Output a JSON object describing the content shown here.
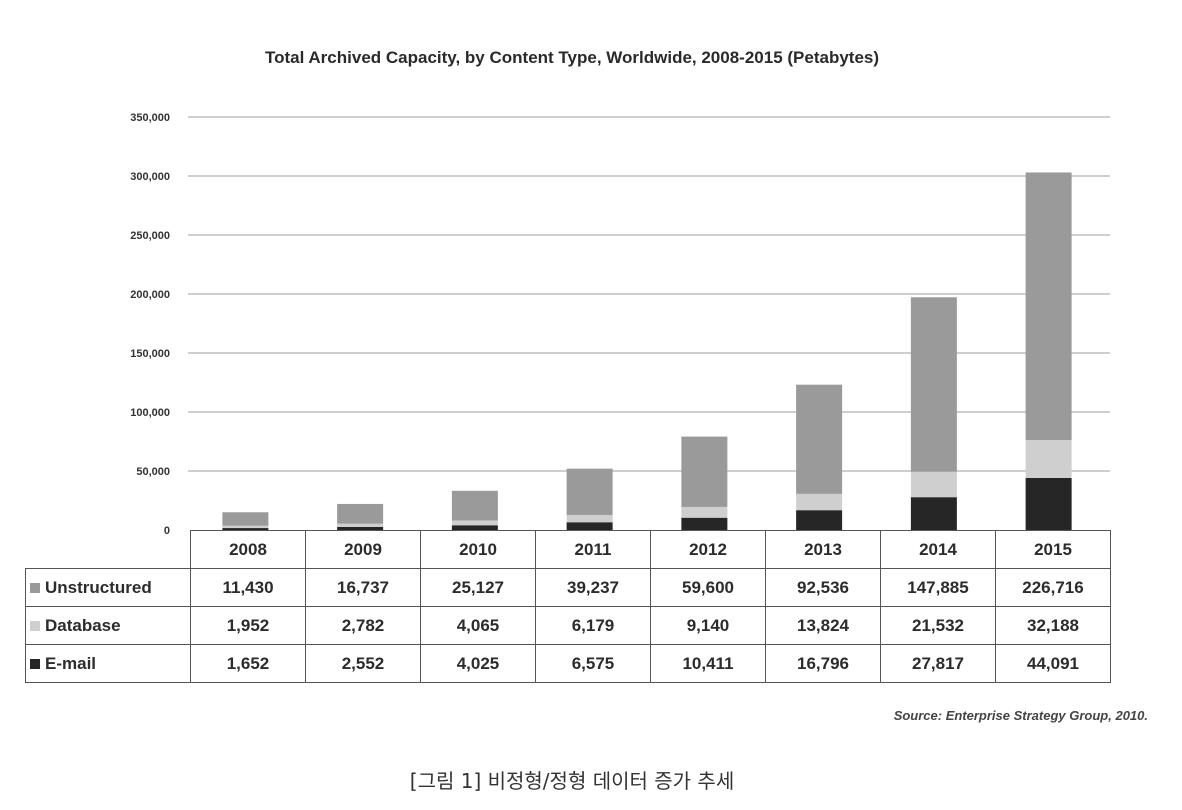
{
  "chart_data": {
    "type": "bar",
    "stacked": true,
    "title": "Total Archived Capacity, by Content Type, Worldwide, 2008-2015 (Petabytes)",
    "categories": [
      "2008",
      "2009",
      "2010",
      "2011",
      "2012",
      "2013",
      "2014",
      "2015"
    ],
    "series": [
      {
        "name": "Unstructured",
        "color": "#9a9a9a",
        "values": [
          11430,
          16737,
          25127,
          39237,
          59600,
          92536,
          147885,
          226716
        ]
      },
      {
        "name": "Database",
        "color": "#cfcfcf",
        "values": [
          1952,
          2782,
          4065,
          6179,
          9140,
          13824,
          21532,
          32188
        ]
      },
      {
        "name": "E-mail",
        "color": "#262626",
        "values": [
          1652,
          2552,
          4025,
          6575,
          10411,
          16796,
          27817,
          44091
        ]
      }
    ],
    "table_rows": [
      {
        "label": "Unstructured",
        "cells": [
          "11,430",
          "16,737",
          "25,127",
          "39,237",
          "59,600",
          "92,536",
          "147,885",
          "226,716"
        ]
      },
      {
        "label": "Database",
        "cells": [
          "1,952",
          "2,782",
          "4,065",
          "6,179",
          "9,140",
          "13,824",
          "21,532",
          "32,188"
        ]
      },
      {
        "label": "E-mail",
        "cells": [
          "1,652",
          "2,552",
          "4,025",
          "6,575",
          "10,411",
          "16,796",
          "27,817",
          "44,091"
        ]
      }
    ],
    "ylim": [
      0,
      350000
    ],
    "yticks": [
      0,
      50000,
      100000,
      150000,
      200000,
      250000,
      300000,
      350000
    ],
    "ytick_labels": [
      "0",
      "50,000",
      "100,000",
      "150,000",
      "200,000",
      "250,000",
      "300,000",
      "350,000"
    ],
    "grid": true,
    "legend": "data-table"
  },
  "source": "Source: Enterprise Strategy Group, 2010.",
  "caption": "[그림 1] 비정형/정형 데이터 증가 추세"
}
